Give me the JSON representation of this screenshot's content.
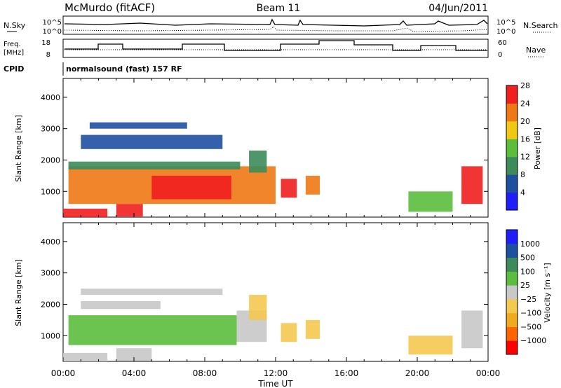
{
  "header": {
    "station": "McMurdo (fitACF)",
    "beam": "Beam 11",
    "date": "04/Jun/2011"
  },
  "top_panels": {
    "nsky_label": "N.Sky",
    "nsearch_label": "N.Search",
    "nsky_ticks": [
      "10^5",
      "10^0"
    ],
    "nsearch_ticks": [
      "10^5",
      "10^0"
    ],
    "freq_label_1": "Freq.",
    "freq_label_2": "[MHz]",
    "freq_ticks": [
      "18",
      "8"
    ],
    "nave_label": "Nave",
    "nave_ticks": [
      "60",
      "0"
    ],
    "cpid_label": "CPID",
    "cpid_text": "normalsound (fast) 157 RF"
  },
  "chart_data": [
    {
      "type": "heatmap",
      "title": "",
      "xlabel": "Time UT",
      "ylabel": "Slant Range [km]",
      "x_ticks": [
        "00:00",
        "04:00",
        "08:00",
        "12:00",
        "16:00",
        "20:00",
        "00:00"
      ],
      "xlim_hours": [
        0,
        24
      ],
      "ylim": [
        180,
        4600
      ],
      "y_ticks": [
        1000,
        2000,
        3000,
        4000
      ],
      "colorbar_label": "Power [dB]",
      "colorbar_ticks": [
        "4",
        "8",
        "12",
        "16",
        "20",
        "24",
        "28"
      ],
      "colorbar_range": [
        0,
        30
      ],
      "colors": [
        "#1e1eff",
        "#1e50a0",
        "#3c8c5a",
        "#5abe3c",
        "#f0c814",
        "#f07814",
        "#f01e1e"
      ],
      "patches": [
        {
          "t0": 0.3,
          "t1": 12.0,
          "r0": 600,
          "r1": 1800,
          "v": 24
        },
        {
          "t0": 5.0,
          "t1": 9.5,
          "r0": 750,
          "r1": 1500,
          "v": 29
        },
        {
          "t0": 0.3,
          "t1": 10.0,
          "r0": 1700,
          "r1": 1950,
          "v": 10
        },
        {
          "t0": 1.0,
          "t1": 9.0,
          "r0": 2350,
          "r1": 2800,
          "v": 8
        },
        {
          "t0": 1.5,
          "t1": 7.0,
          "r0": 3000,
          "r1": 3200,
          "v": 6
        },
        {
          "t0": 0.0,
          "t1": 2.5,
          "r0": 180,
          "r1": 450,
          "v": 26
        },
        {
          "t0": 3.0,
          "t1": 4.5,
          "r0": 200,
          "r1": 600,
          "v": 26
        },
        {
          "t0": 12.3,
          "t1": 13.2,
          "r0": 800,
          "r1": 1400,
          "v": 27
        },
        {
          "t0": 13.7,
          "t1": 14.5,
          "r0": 900,
          "r1": 1500,
          "v": 25
        },
        {
          "t0": 19.5,
          "t1": 22.0,
          "r0": 350,
          "r1": 1000,
          "v": 16
        },
        {
          "t0": 22.5,
          "t1": 23.7,
          "r0": 600,
          "r1": 1800,
          "v": 27
        },
        {
          "t0": 10.5,
          "t1": 11.5,
          "r0": 1600,
          "r1": 2300,
          "v": 10
        }
      ]
    },
    {
      "type": "heatmap",
      "title": "",
      "xlabel": "Time UT",
      "ylabel": "Slant Range [km]",
      "x_ticks": [
        "00:00",
        "04:00",
        "08:00",
        "12:00",
        "16:00",
        "20:00",
        "00:00"
      ],
      "xlim_hours": [
        0,
        24
      ],
      "ylim": [
        180,
        4600
      ],
      "y_ticks": [
        1000,
        2000,
        3000,
        4000
      ],
      "colorbar_label": "Velocity [m s⁻¹]",
      "colorbar_ticks": [
        "1000",
        "500",
        "100",
        "25",
        "−25",
        "−100",
        "−500",
        "−1000"
      ],
      "colorbar_range": [
        -1200,
        1200
      ],
      "colors": [
        "#ff0000",
        "#ff6400",
        "#f0aa1e",
        "#f5c850",
        "#c8c8c8",
        "#5abe3c",
        "#3c8c5a",
        "#1e50a0",
        "#1e1eff"
      ],
      "patches": [
        {
          "t0": 0.3,
          "t1": 9.8,
          "r0": 700,
          "r1": 1650,
          "v": 300
        },
        {
          "t0": 9.8,
          "t1": 11.5,
          "r0": 800,
          "r1": 1800,
          "v": 60
        },
        {
          "t0": 10.5,
          "t1": 11.5,
          "r0": 1500,
          "r1": 2300,
          "v": -150
        },
        {
          "t0": 12.3,
          "t1": 13.2,
          "r0": 800,
          "r1": 1400,
          "v": -300
        },
        {
          "t0": 13.7,
          "t1": 14.5,
          "r0": 900,
          "r1": 1500,
          "v": -200
        },
        {
          "t0": 1.0,
          "t1": 9.0,
          "r0": 2300,
          "r1": 2500,
          "v": 0
        },
        {
          "t0": 1.0,
          "t1": 5.5,
          "r0": 1850,
          "r1": 2100,
          "v": 60
        },
        {
          "t0": 3.0,
          "t1": 5.0,
          "r0": 200,
          "r1": 600,
          "v": 0
        },
        {
          "t0": 0.0,
          "t1": 2.5,
          "r0": 180,
          "r1": 450,
          "v": 60
        },
        {
          "t0": 19.5,
          "t1": 22.0,
          "r0": 400,
          "r1": 1000,
          "v": -200
        },
        {
          "t0": 22.5,
          "t1": 23.7,
          "r0": 600,
          "r1": 1800,
          "v": -80
        }
      ]
    }
  ]
}
